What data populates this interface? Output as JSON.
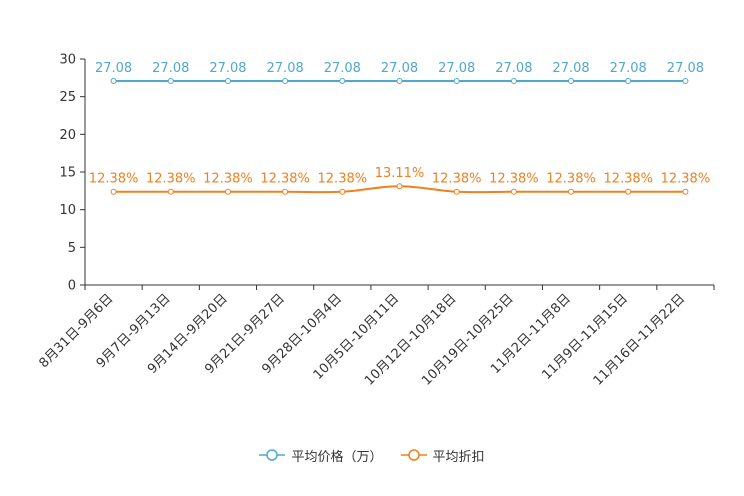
{
  "chart_data": {
    "type": "line",
    "categories": [
      "8月31日-9月6日",
      "9月7日-9月13日",
      "9月14日-9月20日",
      "9月21日-9月27日",
      "9月28日-10月4日",
      "10月5日-10月11日",
      "10月12日-10月18日",
      "10月19日-10月25日",
      "11月2日-11月8日",
      "11月9日-11月15日",
      "11月16日-11月22日"
    ],
    "y_ticks": [
      "0",
      "5",
      "10",
      "15",
      "20",
      "25",
      "30"
    ],
    "ylim": [
      0,
      30
    ],
    "series": [
      {
        "name": "平均价格（万）",
        "color": "#4fa8d0",
        "values": [
          27.08,
          27.08,
          27.08,
          27.08,
          27.08,
          27.08,
          27.08,
          27.08,
          27.08,
          27.08,
          27.08
        ],
        "labels": [
          "27.08",
          "27.08",
          "27.08",
          "27.08",
          "27.08",
          "27.08",
          "27.08",
          "27.08",
          "27.08",
          "27.08",
          "27.08"
        ]
      },
      {
        "name": "平均折扣",
        "color": "#f08020",
        "values": [
          12.38,
          12.38,
          12.38,
          12.38,
          12.38,
          13.11,
          12.38,
          12.38,
          12.38,
          12.38,
          12.38
        ],
        "labels": [
          "12.38%",
          "12.38%",
          "12.38%",
          "12.38%",
          "12.38%",
          "13.11%",
          "12.38%",
          "12.38%",
          "12.38%",
          "12.38%",
          "12.38%"
        ]
      }
    ]
  }
}
